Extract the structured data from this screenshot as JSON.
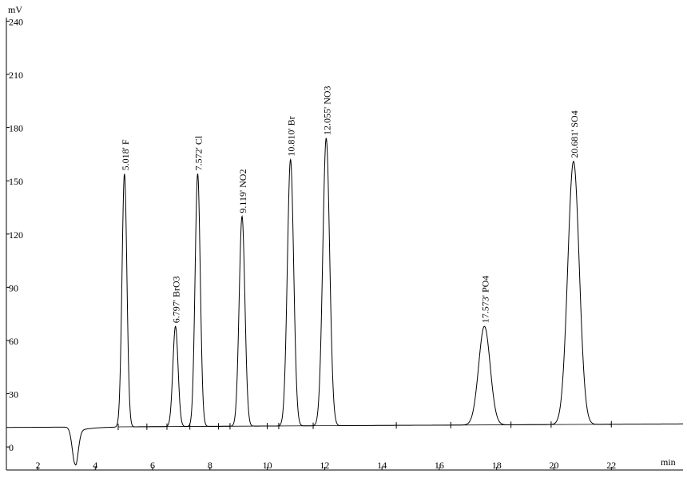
{
  "chart_data": {
    "type": "line",
    "y_unit": "mV",
    "x_unit": "min",
    "xlim": [
      0.9,
      24.5
    ],
    "ylim": [
      -13,
      242
    ],
    "x_ticks": [
      2,
      4,
      6,
      8,
      10,
      12,
      14,
      16,
      18,
      20,
      22
    ],
    "y_ticks": [
      0,
      30,
      60,
      90,
      120,
      150,
      180,
      210,
      240
    ],
    "baseline_start": 11,
    "baseline_end": 13,
    "dip": {
      "x": 3.3,
      "y": -10
    },
    "peaks": [
      {
        "time": 5.018,
        "ion": "F",
        "label": "5.018' F",
        "height": 154,
        "width": 0.085
      },
      {
        "time": 6.797,
        "ion": "BrO3",
        "label": "6.797' BrO3",
        "height": 68,
        "width": 0.09
      },
      {
        "time": 7.572,
        "ion": "Cl",
        "label": "7.572' Cl",
        "height": 154,
        "width": 0.09
      },
      {
        "time": 9.119,
        "ion": "NO2",
        "label": "9.119' NO2",
        "height": 130,
        "width": 0.1
      },
      {
        "time": 10.81,
        "ion": "Br",
        "label": "10.810' Br",
        "height": 162,
        "width": 0.11
      },
      {
        "time": 12.055,
        "ion": "NO3",
        "label": "12.055' NO3",
        "height": 174,
        "width": 0.12
      },
      {
        "time": 17.573,
        "ion": "PO4",
        "label": "17.573' PO4",
        "height": 68,
        "width": 0.2
      },
      {
        "time": 20.681,
        "ion": "SO4",
        "label": "20.681' SO4",
        "height": 161,
        "width": 0.2
      }
    ],
    "integration_marks": [
      4.8,
      5.8,
      6.5,
      7.3,
      8.3,
      8.7,
      10.0,
      10.4,
      11.6,
      14.5,
      16.4,
      18.5,
      19.9,
      22.0
    ],
    "grid": false
  }
}
